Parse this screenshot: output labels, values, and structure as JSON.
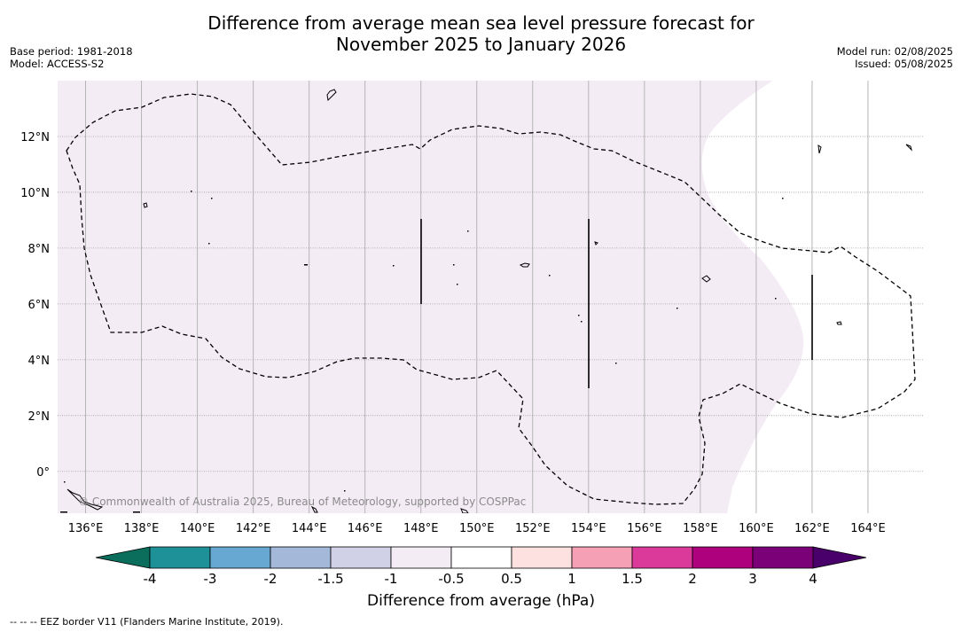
{
  "title_line1": "Difference from average mean sea level pressure forecast for",
  "title_line2": "November 2025 to January 2026",
  "meta_left": {
    "base_period": "Base period: 1981-2018",
    "model": "Model: ACCESS-S2"
  },
  "meta_right": {
    "model_run": "Model run: 02/08/2025",
    "issued": "Issued: 05/08/2025"
  },
  "map": {
    "lon_range": [
      135,
      166
    ],
    "lat_range": [
      -1.5,
      14
    ],
    "lon_ticks": [
      "136°E",
      "138°E",
      "140°E",
      "142°E",
      "144°E",
      "146°E",
      "148°E",
      "150°E",
      "152°E",
      "154°E",
      "156°E",
      "158°E",
      "160°E",
      "162°E",
      "164°E"
    ],
    "lat_ticks": [
      "0°",
      "2°N",
      "4°N",
      "6°N",
      "8°N",
      "10°N",
      "12°N"
    ],
    "grid": true,
    "fill_color": "#f4ecf5",
    "fill_category": "-1 to -0.5",
    "copyright": "© Commonwealth of Australia 2025, Bureau of Meteorology, supported by COSPPac"
  },
  "colorbar": {
    "ticks": [
      "-4",
      "-3",
      "-2",
      "-1.5",
      "-1",
      "-0.5",
      "0.5",
      "1",
      "1.5",
      "2",
      "3",
      "4"
    ],
    "colors": [
      "#1e9098",
      "#67a8d2",
      "#a4b8da",
      "#d0d0e6",
      "#f4ecf5",
      "#ffffff",
      "#fde0e0",
      "#f6a0b6",
      "#dc3a9a",
      "#ae017e",
      "#7a0177"
    ],
    "low_color": "#0b6e5d",
    "high_color": "#49006a",
    "label": "Difference from average (hPa)"
  },
  "footer": "-- -- -- EEZ border V11 (Flanders Marine Institute, 2019)."
}
